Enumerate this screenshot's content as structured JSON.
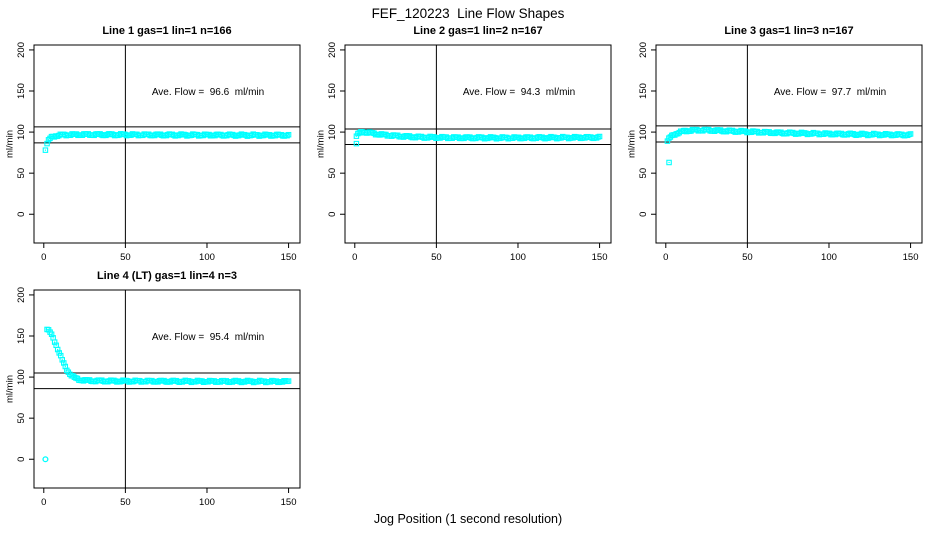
{
  "chart_data": {
    "type": "scatter",
    "title": "FEF_120223  Line Flow Shapes",
    "xlabel": "Jog Position (1 second resolution)",
    "ylabel": "ml/min",
    "marker_color": "#00FFFF",
    "axis_color": "#000000",
    "background_color": "#FFFFFF",
    "grid": false,
    "xticks": [
      0,
      50,
      100,
      150
    ],
    "yticks": [
      0,
      50,
      100,
      150,
      200
    ],
    "xlim": [
      -6,
      157
    ],
    "ylim": [
      -35,
      206
    ],
    "vline_x": 50,
    "panels": [
      {
        "title": "Line 1 gas=1 lin=1 n=166",
        "annotation": "Ave. Flow =  96.6  ml/min",
        "ave_flow": 96.6,
        "n": 166,
        "ref_lines": [
          106.3,
          86.9
        ],
        "outliers": [
          [
            1,
            78
          ]
        ],
        "outlier_shape": "square",
        "x_range": [
          2,
          150
        ],
        "n_points": 165,
        "curve": [
          [
            2,
            86
          ],
          [
            3,
            90
          ],
          [
            4,
            92.5
          ],
          [
            5,
            94
          ],
          [
            7,
            95.5
          ],
          [
            10,
            96.3
          ],
          [
            15,
            96.8
          ],
          [
            25,
            97
          ],
          [
            50,
            96.8
          ],
          [
            80,
            96.5
          ],
          [
            120,
            96.3
          ],
          [
            150,
            96.2
          ]
        ]
      },
      {
        "title": "Line 2 gas=1 lin=2 n=167",
        "annotation": "Ave. Flow =  94.3  ml/min",
        "ave_flow": 94.3,
        "n": 167,
        "ref_lines": [
          103.7,
          84.9
        ],
        "outliers": [
          [
            1,
            86
          ]
        ],
        "outlier_shape": "square",
        "x_range": [
          1,
          150
        ],
        "n_points": 166,
        "curve": [
          [
            1,
            95
          ],
          [
            2,
            97.5
          ],
          [
            3,
            99
          ],
          [
            5,
            100.3
          ],
          [
            8,
            99.5
          ],
          [
            12,
            98
          ],
          [
            18,
            96.5
          ],
          [
            28,
            95
          ],
          [
            40,
            93.8
          ],
          [
            60,
            93.2
          ],
          [
            90,
            93
          ],
          [
            120,
            93.2
          ],
          [
            150,
            93.5
          ]
        ]
      },
      {
        "title": "Line 3 gas=1 lin=3 n=167",
        "annotation": "Ave. Flow =  97.7  ml/min",
        "ave_flow": 97.7,
        "n": 167,
        "ref_lines": [
          107.5,
          87.9
        ],
        "outliers": [
          [
            2,
            63
          ]
        ],
        "outlier_shape": "square",
        "x_range": [
          1,
          150
        ],
        "n_points": 166,
        "curve": [
          [
            1,
            89
          ],
          [
            2,
            92
          ],
          [
            3,
            94
          ],
          [
            5,
            97
          ],
          [
            8,
            99.5
          ],
          [
            12,
            101.5
          ],
          [
            18,
            102.3
          ],
          [
            25,
            102.3
          ],
          [
            35,
            101.5
          ],
          [
            50,
            100.5
          ],
          [
            70,
            99
          ],
          [
            95,
            98
          ],
          [
            120,
            97.2
          ],
          [
            150,
            96.6
          ]
        ]
      },
      {
        "title": "Line 4 (LT) gas=1 lin=4 n=3",
        "annotation": "Ave. Flow =  95.4  ml/min",
        "ave_flow": 95.4,
        "n": 3,
        "ref_lines": [
          104.9,
          85.9
        ],
        "outliers": [
          [
            1,
            0
          ]
        ],
        "outlier_shape": "circle",
        "x_range": [
          2,
          150
        ],
        "n_points": 160,
        "curve": [
          [
            2,
            158
          ],
          [
            3,
            156.5
          ],
          [
            4,
            154
          ],
          [
            5,
            150.5
          ],
          [
            6,
            146.5
          ],
          [
            7,
            142
          ],
          [
            8,
            137
          ],
          [
            9,
            132
          ],
          [
            10,
            127
          ],
          [
            11,
            122
          ],
          [
            12,
            117.5
          ],
          [
            13,
            113
          ],
          [
            14,
            109.5
          ],
          [
            15,
            106.5
          ],
          [
            16,
            104
          ],
          [
            17,
            102
          ],
          [
            18,
            100.3
          ],
          [
            19,
            99
          ],
          [
            20,
            98
          ],
          [
            22,
            96.8
          ],
          [
            25,
            96
          ],
          [
            30,
            95.5
          ],
          [
            40,
            95.2
          ],
          [
            60,
            95
          ],
          [
            90,
            94.8
          ],
          [
            120,
            94.7
          ],
          [
            150,
            94.6
          ]
        ]
      }
    ]
  }
}
